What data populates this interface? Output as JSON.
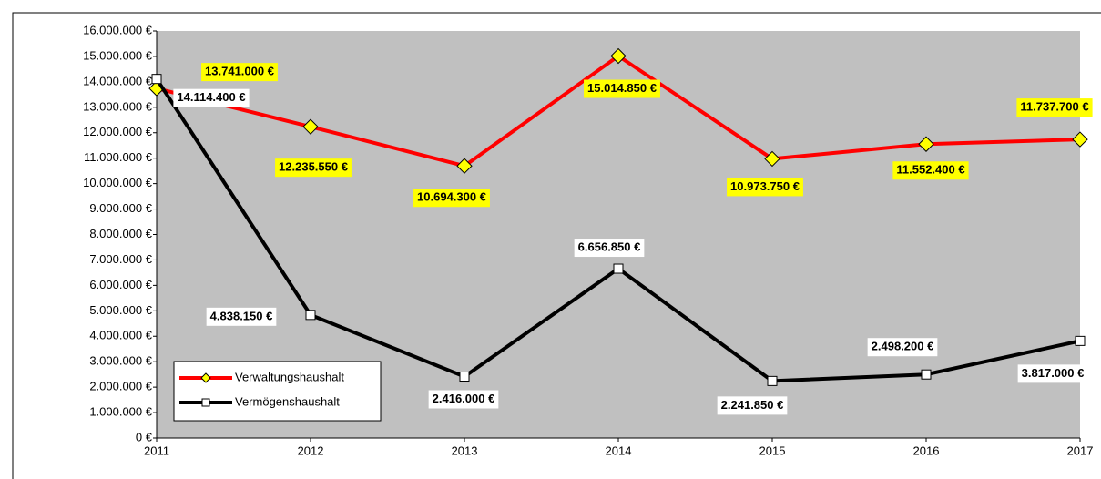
{
  "chart_data": {
    "type": "line",
    "x": [
      2011,
      2012,
      2013,
      2014,
      2015,
      2016,
      2017
    ],
    "xlim": [
      2011,
      2017
    ],
    "xticks": [
      2011,
      2012,
      2013,
      2014,
      2015,
      2016,
      2017
    ],
    "ylim": [
      0,
      16000000
    ],
    "yticks": [
      {
        "value": 0,
        "label": "0 €"
      },
      {
        "value": 1000000,
        "label": "1.000.000 €"
      },
      {
        "value": 2000000,
        "label": "2.000.000 €"
      },
      {
        "value": 3000000,
        "label": "3.000.000 €"
      },
      {
        "value": 4000000,
        "label": "4.000.000 €"
      },
      {
        "value": 5000000,
        "label": "5.000.000 €"
      },
      {
        "value": 6000000,
        "label": "6.000.000 €"
      },
      {
        "value": 7000000,
        "label": "7.000.000 €"
      },
      {
        "value": 8000000,
        "label": "8.000.000 €"
      },
      {
        "value": 9000000,
        "label": "9.000.000 €"
      },
      {
        "value": 10000000,
        "label": "10.000.000 €"
      },
      {
        "value": 11000000,
        "label": "11.000.000 €"
      },
      {
        "value": 12000000,
        "label": "12.000.000 €"
      },
      {
        "value": 13000000,
        "label": "13.000.000 €"
      },
      {
        "value": 14000000,
        "label": "14.000.000 €"
      },
      {
        "value": 15000000,
        "label": "15.000.000 €"
      },
      {
        "value": 16000000,
        "label": "16.000.000 €"
      }
    ],
    "legend": "lower left",
    "series": [
      {
        "name": "Verwaltungshaushalt",
        "color": "#ff0000",
        "marker": "diamond",
        "marker_fill": "#ffff00",
        "label_fill": "#ffff00",
        "values": [
          13741000,
          12235550,
          10694300,
          15014850,
          10973750,
          11552400,
          11737700
        ],
        "value_labels": [
          "13.741.000 €",
          "12.235.550 €",
          "10.694.300 €",
          "15.014.850 €",
          "10.973.750 €",
          "11.552.400 €",
          "11.737.700 €"
        ]
      },
      {
        "name": "Vermögenshaushalt",
        "color": "#000000",
        "marker": "square",
        "marker_fill": "#ffffff",
        "label_fill": "#ffffff",
        "values": [
          14114400,
          4838150,
          2416000,
          6656850,
          2241850,
          2498200,
          3817000
        ],
        "value_labels": [
          "14.114.400 €",
          "4.838.150 €",
          "2.416.000 €",
          "6.656.850 €",
          "2.241.850 €",
          "2.498.200 €",
          "3.817.000 €"
        ]
      }
    ]
  }
}
